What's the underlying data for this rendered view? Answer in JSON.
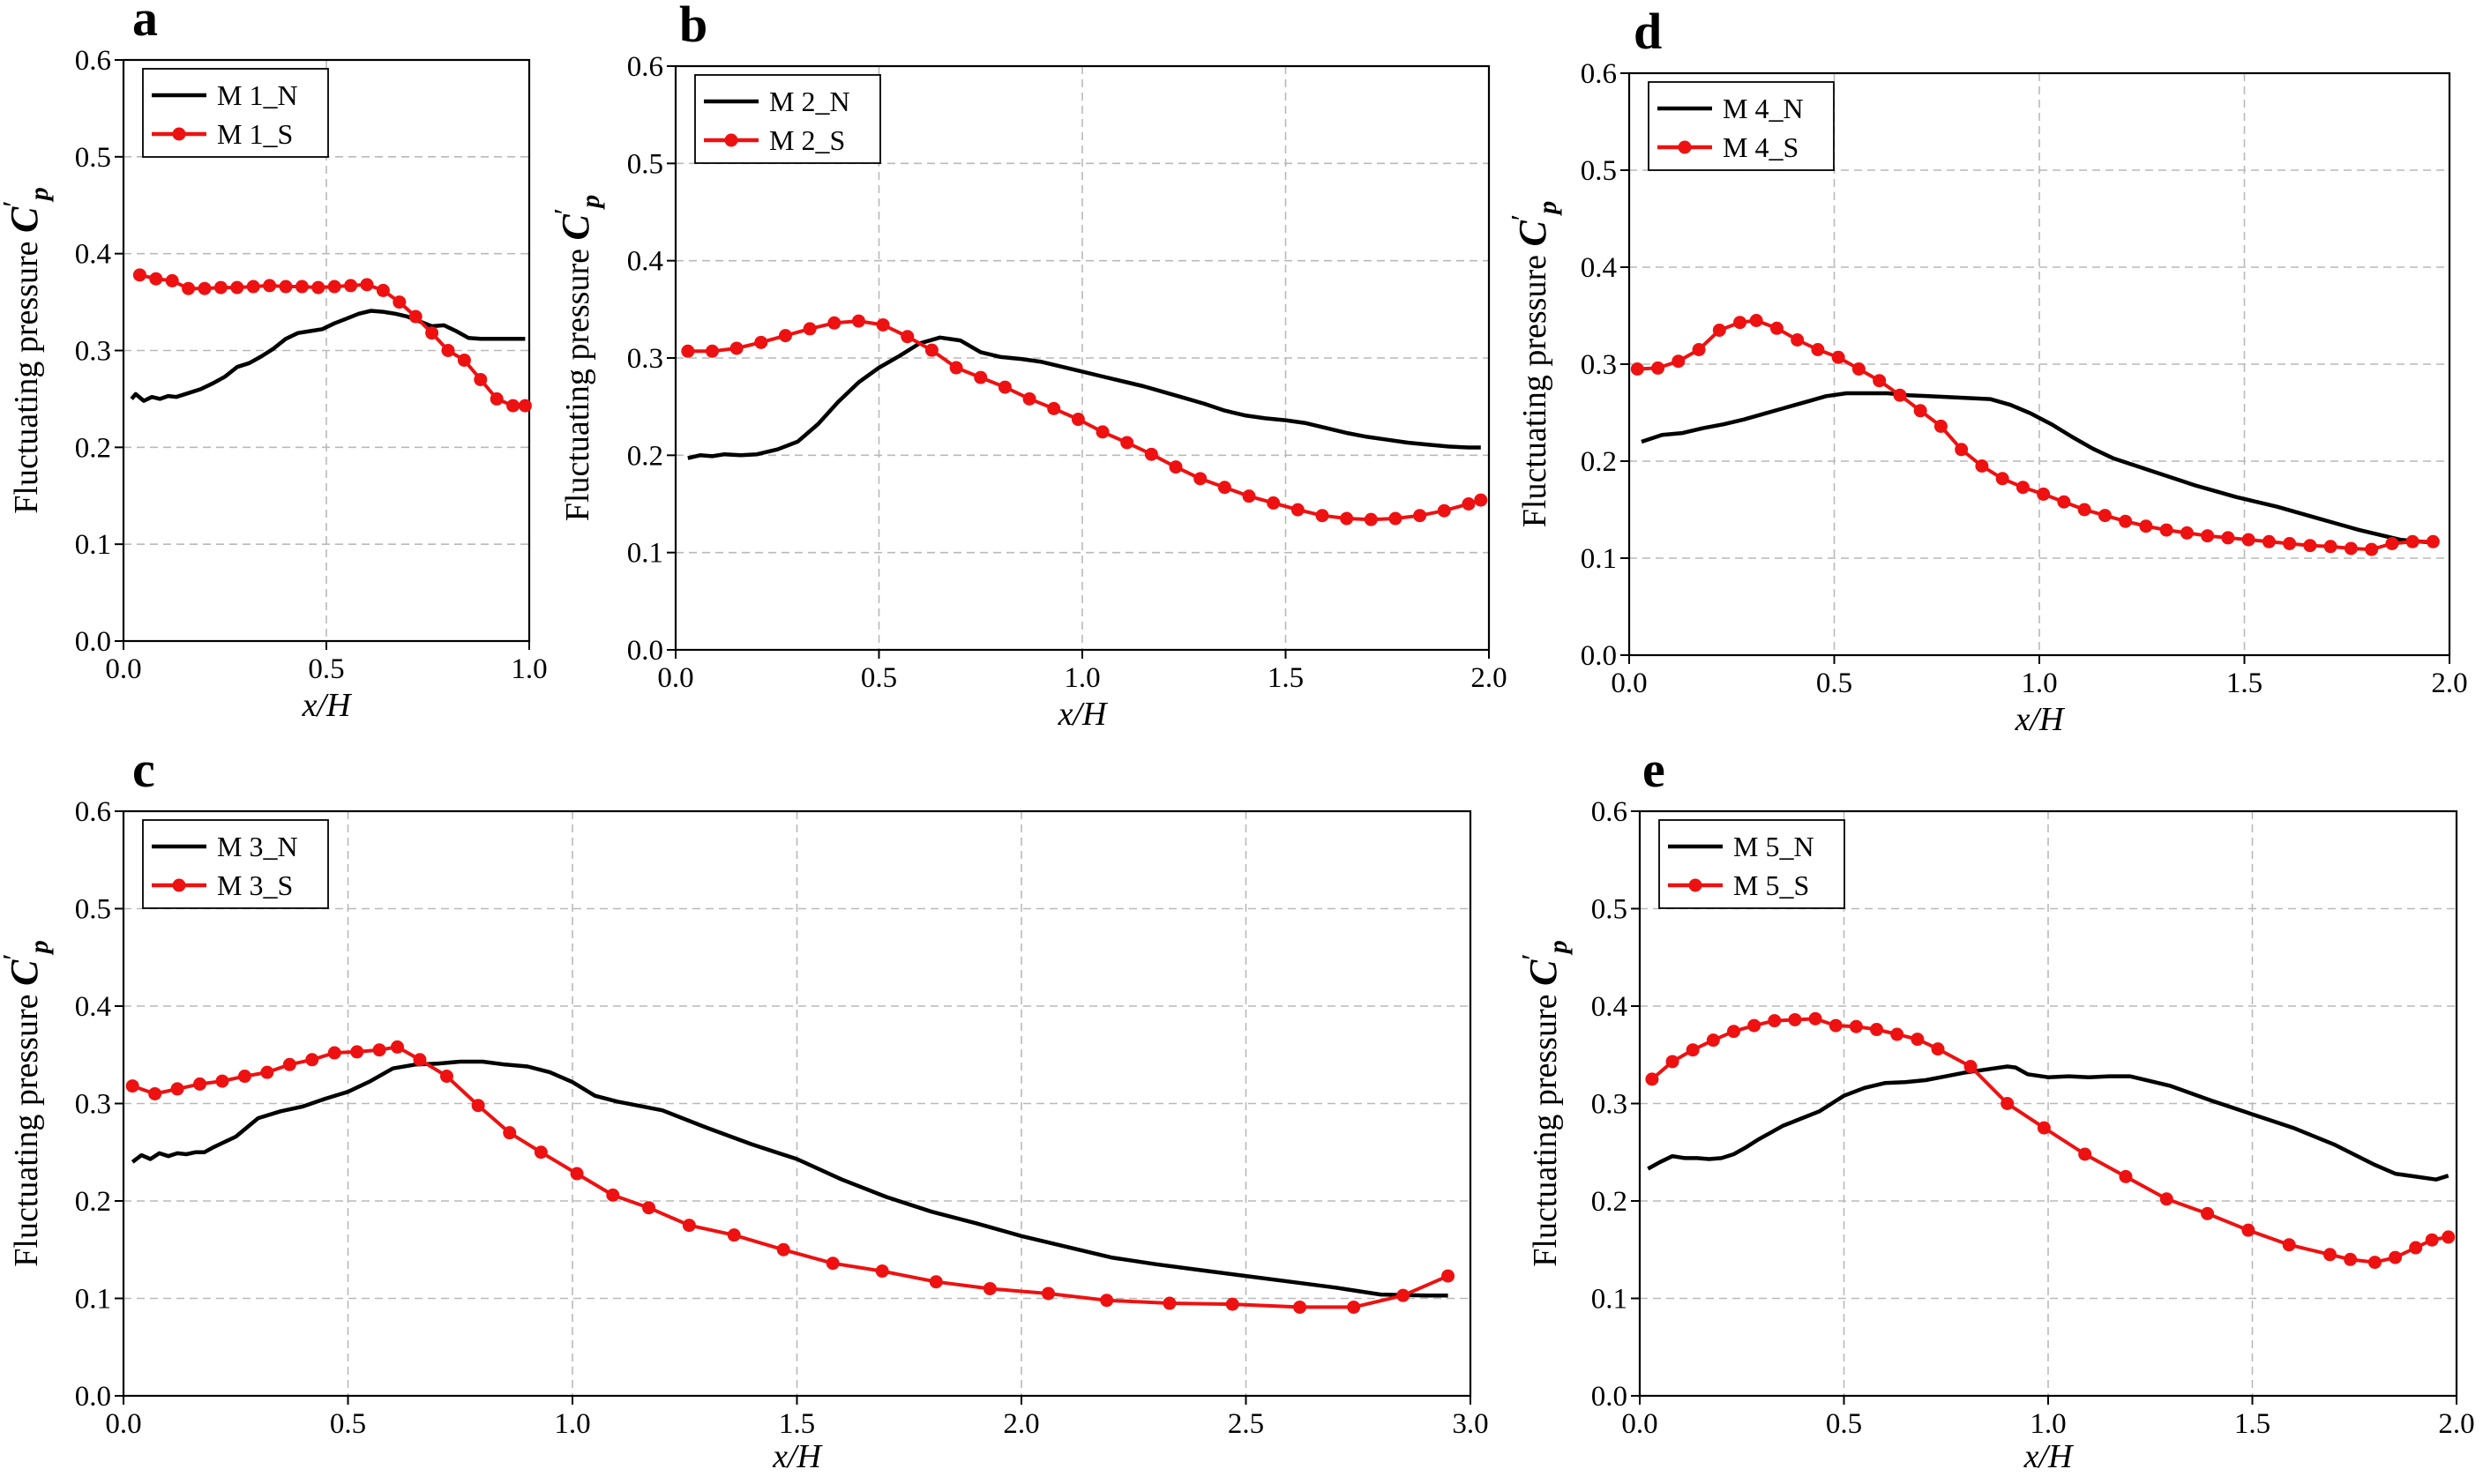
{
  "figure": {
    "y_axis_label": "Fluctuating pressure",
    "y_symbol": "C",
    "y_subscript": "p",
    "y_prime": "′",
    "x_axis_label": "x/H"
  },
  "colors": {
    "n_series": "#000000",
    "s_series": "#ee1111"
  },
  "chart_data": [
    {
      "panel": "a",
      "type": "line",
      "xlim": [
        0,
        1.0
      ],
      "ylim": [
        0,
        0.6
      ],
      "xticks": [
        0.0,
        0.5,
        1.0
      ],
      "xtick_labels": [
        "0.0",
        "0.5",
        "1.0"
      ],
      "yticks": [
        0.0,
        0.1,
        0.2,
        0.3,
        0.4,
        0.5,
        0.6
      ],
      "ytick_labels": [
        "0.0",
        "0.1",
        "0.2",
        "0.3",
        "0.4",
        "0.5",
        "0.6"
      ],
      "grid": true,
      "legend_position": "top-left",
      "series": [
        {
          "name": "M 1_N",
          "marker": "none",
          "x": [
            0.02,
            0.03,
            0.05,
            0.07,
            0.09,
            0.11,
            0.13,
            0.16,
            0.19,
            0.22,
            0.25,
            0.28,
            0.31,
            0.34,
            0.37,
            0.4,
            0.43,
            0.46,
            0.49,
            0.52,
            0.55,
            0.58,
            0.61,
            0.64,
            0.67,
            0.7,
            0.73,
            0.76,
            0.79,
            0.82,
            0.85,
            0.88,
            0.91,
            0.94,
            0.97,
            0.99
          ],
          "y": [
            0.25,
            0.255,
            0.248,
            0.252,
            0.25,
            0.253,
            0.252,
            0.256,
            0.26,
            0.266,
            0.273,
            0.283,
            0.287,
            0.294,
            0.302,
            0.312,
            0.318,
            0.32,
            0.322,
            0.328,
            0.333,
            0.338,
            0.341,
            0.34,
            0.338,
            0.335,
            0.33,
            0.325,
            0.326,
            0.32,
            0.313,
            0.312,
            0.312,
            0.312,
            0.312,
            0.312
          ]
        },
        {
          "name": "M 1_S",
          "marker": "circle",
          "x": [
            0.04,
            0.08,
            0.12,
            0.16,
            0.2,
            0.24,
            0.28,
            0.32,
            0.36,
            0.4,
            0.44,
            0.48,
            0.52,
            0.56,
            0.6,
            0.64,
            0.68,
            0.72,
            0.76,
            0.8,
            0.84,
            0.88,
            0.92,
            0.96,
            0.99
          ],
          "y": [
            0.378,
            0.374,
            0.372,
            0.364,
            0.364,
            0.365,
            0.365,
            0.366,
            0.367,
            0.366,
            0.366,
            0.365,
            0.366,
            0.367,
            0.368,
            0.362,
            0.35,
            0.335,
            0.318,
            0.3,
            0.29,
            0.27,
            0.25,
            0.243,
            0.243
          ]
        }
      ]
    },
    {
      "panel": "b",
      "type": "line",
      "xlim": [
        0,
        2.0
      ],
      "ylim": [
        0,
        0.6
      ],
      "xticks": [
        0.0,
        0.5,
        1.0,
        1.5,
        2.0
      ],
      "xtick_labels": [
        "0.0",
        "0.5",
        "1.0",
        "1.5",
        "2.0"
      ],
      "yticks": [
        0.0,
        0.1,
        0.2,
        0.3,
        0.4,
        0.5,
        0.6
      ],
      "ytick_labels": [
        "0.0",
        "0.1",
        "0.2",
        "0.3",
        "0.4",
        "0.5",
        "0.6"
      ],
      "grid": true,
      "legend_position": "top-left",
      "series": [
        {
          "name": "M 2_N",
          "marker": "none",
          "x": [
            0.03,
            0.06,
            0.09,
            0.12,
            0.16,
            0.2,
            0.25,
            0.3,
            0.35,
            0.4,
            0.45,
            0.5,
            0.55,
            0.6,
            0.65,
            0.7,
            0.75,
            0.8,
            0.85,
            0.9,
            0.95,
            1.0,
            1.05,
            1.1,
            1.15,
            1.2,
            1.25,
            1.3,
            1.35,
            1.4,
            1.45,
            1.5,
            1.55,
            1.6,
            1.65,
            1.7,
            1.75,
            1.8,
            1.85,
            1.9,
            1.95,
            1.98
          ],
          "y": [
            0.197,
            0.2,
            0.199,
            0.201,
            0.2,
            0.201,
            0.206,
            0.214,
            0.232,
            0.255,
            0.275,
            0.29,
            0.302,
            0.315,
            0.321,
            0.318,
            0.306,
            0.301,
            0.299,
            0.296,
            0.291,
            0.286,
            0.281,
            0.276,
            0.271,
            0.265,
            0.259,
            0.253,
            0.246,
            0.241,
            0.238,
            0.236,
            0.233,
            0.228,
            0.223,
            0.219,
            0.216,
            0.213,
            0.211,
            0.209,
            0.208,
            0.208
          ]
        },
        {
          "name": "M 2_S",
          "marker": "circle",
          "x": [
            0.03,
            0.09,
            0.15,
            0.21,
            0.27,
            0.33,
            0.39,
            0.45,
            0.51,
            0.57,
            0.63,
            0.69,
            0.75,
            0.81,
            0.87,
            0.93,
            0.99,
            1.05,
            1.11,
            1.17,
            1.23,
            1.29,
            1.35,
            1.41,
            1.47,
            1.53,
            1.59,
            1.65,
            1.71,
            1.77,
            1.83,
            1.89,
            1.95,
            1.98
          ],
          "y": [
            0.307,
            0.307,
            0.31,
            0.316,
            0.323,
            0.33,
            0.336,
            0.338,
            0.334,
            0.322,
            0.308,
            0.29,
            0.28,
            0.27,
            0.258,
            0.248,
            0.237,
            0.224,
            0.213,
            0.201,
            0.188,
            0.176,
            0.167,
            0.158,
            0.151,
            0.144,
            0.138,
            0.135,
            0.134,
            0.135,
            0.138,
            0.143,
            0.15,
            0.154
          ]
        }
      ]
    },
    {
      "panel": "d",
      "type": "line",
      "xlim": [
        0,
        2.0
      ],
      "ylim": [
        0,
        0.6
      ],
      "xticks": [
        0.0,
        0.5,
        1.0,
        1.5,
        2.0
      ],
      "xtick_labels": [
        "0.0",
        "0.5",
        "1.0",
        "1.5",
        "2.0"
      ],
      "yticks": [
        0.0,
        0.1,
        0.2,
        0.3,
        0.4,
        0.5,
        0.6
      ],
      "ytick_labels": [
        "0.0",
        "0.1",
        "0.2",
        "0.3",
        "0.4",
        "0.5",
        "0.6"
      ],
      "grid": true,
      "legend_position": "top-left",
      "series": [
        {
          "name": "M 4_N",
          "marker": "none",
          "x": [
            0.03,
            0.08,
            0.13,
            0.18,
            0.23,
            0.28,
            0.33,
            0.38,
            0.43,
            0.48,
            0.53,
            0.58,
            0.63,
            0.68,
            0.73,
            0.78,
            0.83,
            0.88,
            0.93,
            0.98,
            1.03,
            1.08,
            1.13,
            1.18,
            1.23,
            1.28,
            1.33,
            1.38,
            1.43,
            1.48,
            1.53,
            1.58,
            1.63,
            1.68,
            1.73,
            1.78,
            1.83,
            1.88,
            1.93,
            1.97
          ],
          "y": [
            0.22,
            0.227,
            0.229,
            0.234,
            0.238,
            0.243,
            0.249,
            0.255,
            0.261,
            0.267,
            0.27,
            0.27,
            0.27,
            0.268,
            0.267,
            0.266,
            0.265,
            0.264,
            0.258,
            0.249,
            0.238,
            0.225,
            0.213,
            0.203,
            0.196,
            0.189,
            0.182,
            0.175,
            0.169,
            0.163,
            0.158,
            0.153,
            0.147,
            0.141,
            0.135,
            0.129,
            0.124,
            0.119,
            0.117,
            0.116
          ]
        },
        {
          "name": "M 4_S",
          "marker": "circle",
          "x": [
            0.02,
            0.07,
            0.12,
            0.17,
            0.22,
            0.27,
            0.31,
            0.36,
            0.41,
            0.46,
            0.51,
            0.56,
            0.61,
            0.66,
            0.71,
            0.76,
            0.81,
            0.86,
            0.91,
            0.96,
            1.01,
            1.06,
            1.11,
            1.16,
            1.21,
            1.26,
            1.31,
            1.36,
            1.41,
            1.46,
            1.51,
            1.56,
            1.61,
            1.66,
            1.71,
            1.76,
            1.81,
            1.86,
            1.91,
            1.96
          ],
          "y": [
            0.295,
            0.296,
            0.303,
            0.315,
            0.335,
            0.343,
            0.345,
            0.337,
            0.325,
            0.315,
            0.307,
            0.295,
            0.283,
            0.268,
            0.252,
            0.236,
            0.212,
            0.195,
            0.182,
            0.173,
            0.166,
            0.158,
            0.15,
            0.144,
            0.138,
            0.133,
            0.129,
            0.126,
            0.123,
            0.121,
            0.119,
            0.117,
            0.115,
            0.113,
            0.112,
            0.11,
            0.109,
            0.115,
            0.117,
            0.117
          ]
        }
      ]
    },
    {
      "panel": "c",
      "type": "line",
      "xlim": [
        0,
        3.0
      ],
      "ylim": [
        0,
        0.6
      ],
      "xticks": [
        0.0,
        0.5,
        1.0,
        1.5,
        2.0,
        2.5,
        3.0
      ],
      "xtick_labels": [
        "0.0",
        "0.5",
        "1.0",
        "1.5",
        "2.0",
        "2.5",
        "3.0"
      ],
      "yticks": [
        0.0,
        0.1,
        0.2,
        0.3,
        0.4,
        0.5,
        0.6
      ],
      "ytick_labels": [
        "0.0",
        "0.1",
        "0.2",
        "0.3",
        "0.4",
        "0.5",
        "0.6"
      ],
      "grid": true,
      "legend_position": "top-left",
      "series": [
        {
          "name": "M 3_N",
          "marker": "none",
          "x": [
            0.02,
            0.04,
            0.06,
            0.08,
            0.1,
            0.12,
            0.14,
            0.16,
            0.18,
            0.2,
            0.25,
            0.3,
            0.35,
            0.4,
            0.45,
            0.5,
            0.55,
            0.6,
            0.65,
            0.7,
            0.75,
            0.8,
            0.85,
            0.9,
            0.95,
            1.0,
            1.05,
            1.1,
            1.2,
            1.3,
            1.4,
            1.5,
            1.6,
            1.7,
            1.8,
            1.9,
            2.0,
            2.1,
            2.2,
            2.3,
            2.4,
            2.5,
            2.6,
            2.7,
            2.8,
            2.9,
            2.95
          ],
          "y": [
            0.24,
            0.247,
            0.243,
            0.249,
            0.246,
            0.249,
            0.248,
            0.25,
            0.25,
            0.255,
            0.266,
            0.285,
            0.292,
            0.297,
            0.305,
            0.312,
            0.323,
            0.336,
            0.34,
            0.341,
            0.343,
            0.343,
            0.34,
            0.338,
            0.332,
            0.322,
            0.308,
            0.302,
            0.293,
            0.275,
            0.258,
            0.243,
            0.222,
            0.204,
            0.189,
            0.177,
            0.164,
            0.153,
            0.142,
            0.135,
            0.129,
            0.123,
            0.117,
            0.111,
            0.104,
            0.103,
            0.103
          ]
        },
        {
          "name": "M 3_S",
          "marker": "circle",
          "x": [
            0.02,
            0.07,
            0.12,
            0.17,
            0.22,
            0.27,
            0.32,
            0.37,
            0.42,
            0.47,
            0.52,
            0.57,
            0.61,
            0.66,
            0.72,
            0.79,
            0.86,
            0.93,
            1.01,
            1.09,
            1.17,
            1.26,
            1.36,
            1.47,
            1.58,
            1.69,
            1.81,
            1.93,
            2.06,
            2.19,
            2.33,
            2.47,
            2.62,
            2.74,
            2.85,
            2.95
          ],
          "y": [
            0.318,
            0.31,
            0.315,
            0.32,
            0.323,
            0.328,
            0.332,
            0.34,
            0.345,
            0.352,
            0.353,
            0.355,
            0.358,
            0.345,
            0.328,
            0.298,
            0.27,
            0.25,
            0.228,
            0.206,
            0.193,
            0.175,
            0.165,
            0.15,
            0.136,
            0.128,
            0.117,
            0.11,
            0.105,
            0.098,
            0.095,
            0.094,
            0.091,
            0.091,
            0.103,
            0.123
          ]
        }
      ]
    },
    {
      "panel": "e",
      "type": "line",
      "xlim": [
        0,
        2.0
      ],
      "ylim": [
        0,
        0.6
      ],
      "xticks": [
        0.0,
        0.5,
        1.0,
        1.5,
        2.0
      ],
      "xtick_labels": [
        "0.0",
        "0.5",
        "1.0",
        "1.5",
        "2.0"
      ],
      "yticks": [
        0.0,
        0.1,
        0.2,
        0.3,
        0.4,
        0.5,
        0.6
      ],
      "ytick_labels": [
        "0.0",
        "0.1",
        "0.2",
        "0.3",
        "0.4",
        "0.5",
        "0.6"
      ],
      "grid": true,
      "legend_position": "top-left",
      "series": [
        {
          "name": "M 5_N",
          "marker": "none",
          "x": [
            0.02,
            0.05,
            0.08,
            0.11,
            0.14,
            0.17,
            0.2,
            0.23,
            0.26,
            0.29,
            0.32,
            0.35,
            0.38,
            0.41,
            0.44,
            0.47,
            0.5,
            0.55,
            0.6,
            0.65,
            0.7,
            0.75,
            0.8,
            0.85,
            0.9,
            0.92,
            0.95,
            1.0,
            1.05,
            1.1,
            1.15,
            1.2,
            1.3,
            1.4,
            1.5,
            1.6,
            1.7,
            1.8,
            1.85,
            1.9,
            1.95,
            1.98
          ],
          "y": [
            0.233,
            0.24,
            0.246,
            0.244,
            0.244,
            0.243,
            0.244,
            0.248,
            0.255,
            0.263,
            0.27,
            0.277,
            0.282,
            0.287,
            0.292,
            0.3,
            0.308,
            0.316,
            0.321,
            0.322,
            0.324,
            0.328,
            0.332,
            0.335,
            0.338,
            0.337,
            0.33,
            0.327,
            0.328,
            0.327,
            0.328,
            0.328,
            0.318,
            0.303,
            0.289,
            0.275,
            0.258,
            0.237,
            0.228,
            0.225,
            0.222,
            0.226
          ]
        },
        {
          "name": "M 5_S",
          "marker": "circle",
          "x": [
            0.03,
            0.08,
            0.13,
            0.18,
            0.23,
            0.28,
            0.33,
            0.38,
            0.43,
            0.48,
            0.53,
            0.58,
            0.63,
            0.68,
            0.73,
            0.81,
            0.9,
            0.99,
            1.09,
            1.19,
            1.29,
            1.39,
            1.49,
            1.59,
            1.69,
            1.74,
            1.8,
            1.85,
            1.9,
            1.94,
            1.98
          ],
          "y": [
            0.325,
            0.343,
            0.355,
            0.365,
            0.374,
            0.38,
            0.385,
            0.386,
            0.387,
            0.38,
            0.379,
            0.376,
            0.371,
            0.366,
            0.356,
            0.338,
            0.3,
            0.275,
            0.248,
            0.225,
            0.202,
            0.187,
            0.17,
            0.155,
            0.145,
            0.14,
            0.137,
            0.142,
            0.152,
            0.16,
            0.163
          ]
        }
      ]
    }
  ]
}
